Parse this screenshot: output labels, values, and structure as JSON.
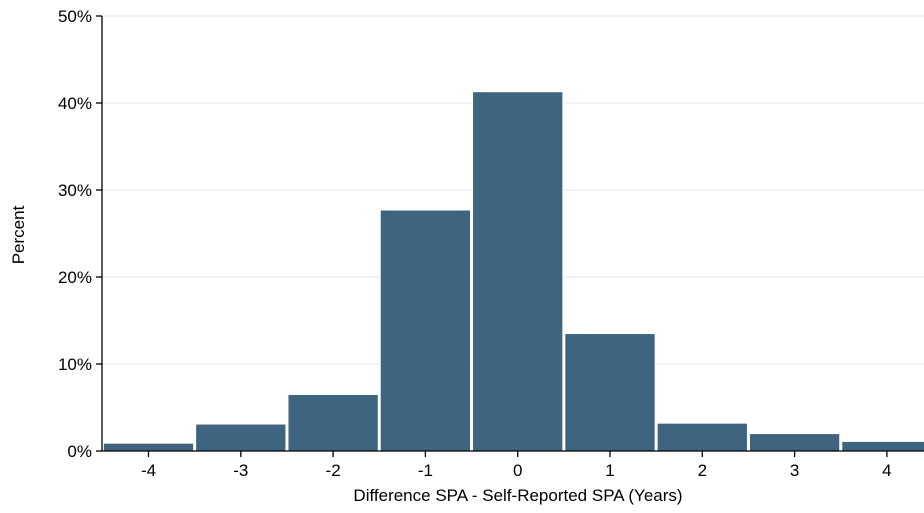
{
  "chart_data": {
    "type": "bar",
    "xlabel": "Difference SPA - Self-Reported SPA (Years)",
    "ylabel": "Percent",
    "x": [
      -4,
      -3,
      -2,
      -1,
      0,
      1,
      2,
      3,
      4
    ],
    "values": [
      0.9,
      3.1,
      6.5,
      27.7,
      41.3,
      13.5,
      3.2,
      2.0,
      1.1
    ],
    "ylim": [
      0,
      50
    ],
    "yticks": [
      0,
      10,
      20,
      30,
      40,
      50
    ],
    "ytick_labels": [
      "0%",
      "10%",
      "20%",
      "30%",
      "40%",
      "50%"
    ],
    "xtick_labels": [
      "-4",
      "-3",
      "-2",
      "-1",
      "0",
      "1",
      "2",
      "3",
      "4"
    ],
    "bar_color": "#3f6480",
    "grid": true,
    "grid_color": "#e4ecef"
  }
}
